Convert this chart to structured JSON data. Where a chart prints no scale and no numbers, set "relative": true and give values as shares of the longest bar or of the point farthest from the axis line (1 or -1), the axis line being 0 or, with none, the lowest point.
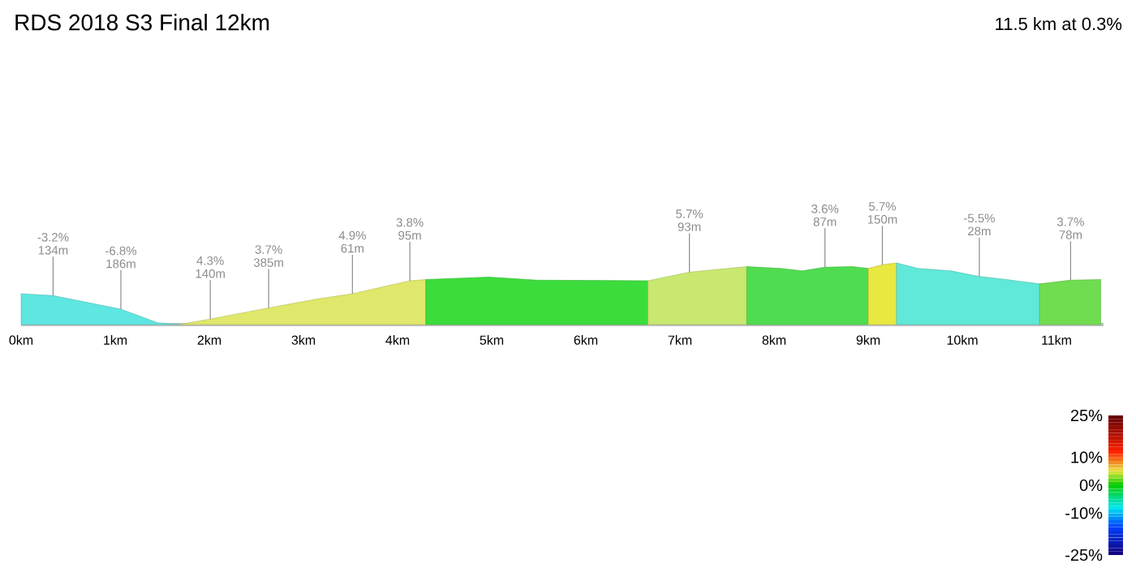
{
  "chart_data": {
    "type": "area",
    "title": "RDS 2018 S3 Final 12km",
    "subtitle": "11.5 km at 0.3%",
    "relative": true,
    "xlim": [
      0,
      11.5
    ],
    "xticks": [
      {
        "value": 0,
        "label": "0km"
      },
      {
        "value": 1,
        "label": "1km"
      },
      {
        "value": 2,
        "label": "2km"
      },
      {
        "value": 3,
        "label": "3km"
      },
      {
        "value": 4,
        "label": "4km"
      },
      {
        "value": 5,
        "label": "5km"
      },
      {
        "value": 6,
        "label": "6km"
      },
      {
        "value": 7,
        "label": "7km"
      },
      {
        "value": 8,
        "label": "8km"
      },
      {
        "value": 9,
        "label": "9km"
      },
      {
        "value": 10,
        "label": "10km"
      },
      {
        "value": 11,
        "label": "11km"
      }
    ],
    "series": [
      {
        "color": "#5ee6e0",
        "x": [
          0,
          0.34,
          1.06,
          1.45,
          1.68
        ],
        "values": [
          0.5,
          0.47,
          0.25,
          0.03,
          0
        ]
      },
      {
        "color": "#dfe86a",
        "x": [
          1.68,
          2.01,
          2.63,
          3.13,
          3.52,
          4.13,
          4.3
        ],
        "values": [
          0,
          0.09,
          0.27,
          0.41,
          0.5,
          0.71,
          0.73
        ]
      },
      {
        "color": "#3cdc3c",
        "x": [
          4.3,
          4.97,
          5.48,
          6.66
        ],
        "values": [
          0.73,
          0.77,
          0.72,
          0.71
        ]
      },
      {
        "color": "#c8e870",
        "x": [
          6.66,
          7.1,
          7.71
        ],
        "values": [
          0.71,
          0.85,
          0.94
        ]
      },
      {
        "color": "#50dc50",
        "x": [
          7.71,
          8.07,
          8.3,
          8.54,
          8.83,
          9.0
        ],
        "values": [
          0.94,
          0.91,
          0.87,
          0.93,
          0.94,
          0.91
        ]
      },
      {
        "color": "#e8e840",
        "x": [
          9.0,
          9.15,
          9.3
        ],
        "values": [
          0.91,
          0.97,
          1
        ]
      },
      {
        "color": "#60e8d8",
        "x": [
          9.3,
          9.53,
          9.88,
          10.18,
          10.47,
          10.82
        ],
        "values": [
          1,
          0.91,
          0.87,
          0.78,
          0.73,
          0.66
        ]
      },
      {
        "color": "#70dc50",
        "x": [
          10.82,
          11.15,
          11.47
        ],
        "values": [
          0.66,
          0.72,
          0.73
        ]
      }
    ],
    "annotations": [
      {
        "text": "-3.2% 134m",
        "x": 0.34,
        "y": 0.47
      },
      {
        "text": "-6.8% 186m",
        "x": 1.06,
        "y": 0.25
      },
      {
        "text": "4.3% 140m",
        "x": 2.01,
        "y": 0.09
      },
      {
        "text": "3.7% 385m",
        "x": 2.63,
        "y": 0.27
      },
      {
        "text": "4.9% 61m",
        "x": 3.52,
        "y": 0.5
      },
      {
        "text": "3.8% 95m",
        "x": 4.13,
        "y": 0.71
      },
      {
        "text": "5.7% 93m",
        "x": 7.1,
        "y": 0.85
      },
      {
        "text": "3.6% 87m",
        "x": 8.54,
        "y": 0.93
      },
      {
        "text": "5.7% 150m",
        "x": 9.15,
        "y": 0.97
      },
      {
        "text": "-5.5% 28m",
        "x": 10.18,
        "y": 0.78
      },
      {
        "text": "3.7% 78m",
        "x": 11.15,
        "y": 0.72
      }
    ],
    "clim": [
      -25,
      25
    ],
    "cticks": [
      {
        "value": 25,
        "label": "25%"
      },
      {
        "value": 10,
        "label": "10%"
      },
      {
        "value": 0,
        "label": "0%"
      },
      {
        "value": -10,
        "label": "-10%"
      },
      {
        "value": -25,
        "label": "-25%"
      }
    ]
  }
}
